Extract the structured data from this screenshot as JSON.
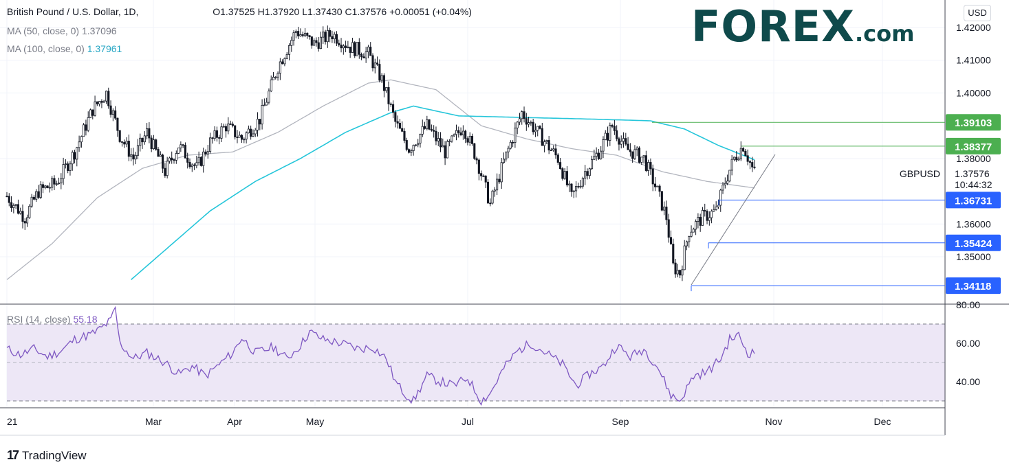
{
  "header": {
    "symbol_line": "British Pound / U.S. Dollar, 1D,",
    "ohlc": "O1.37525  H1.37920  L1.37430  C1.37576  +0.00051 (+0.04%)",
    "ma50_label": "MA (50, close, 0)",
    "ma50_value": "1.37096",
    "ma100_label": "MA (100, close, 0)",
    "ma100_value": "1.37961"
  },
  "logo": {
    "main": "FOREX",
    "suffix": ".com"
  },
  "footer": {
    "brand": "TradingView",
    "mark": "17"
  },
  "currency_button": "USD",
  "colors": {
    "bull": "#131722",
    "bear": "#131722",
    "ma50": "#b2b5be",
    "ma100": "#26c6da",
    "resistance": "#4caf50",
    "support": "#2962ff",
    "rsi": "#7e57c2",
    "rsi_band": "#ede7f6"
  },
  "chart_data": [
    {
      "type": "candlestick",
      "title": "British Pound / U.S. Dollar, 1D",
      "symbol": "GBPUSD",
      "last_price": "1.37576",
      "countdown": "10:44:32",
      "y_ticks": [
        "1.42000",
        "1.41000",
        "1.40000",
        "1.38000",
        "1.36000",
        "1.35000"
      ],
      "ylim": [
        1.3375,
        1.4235
      ],
      "x_ticks": [
        "21",
        "Mar",
        "Apr",
        "May",
        "Jul",
        "Sep",
        "Nov",
        "Dec"
      ],
      "levels": [
        {
          "value": "1.39103",
          "color": "green"
        },
        {
          "value": "1.38377",
          "color": "green"
        },
        {
          "value": "1.36731",
          "color": "blue"
        },
        {
          "value": "1.35424",
          "color": "blue"
        },
        {
          "value": "1.34118",
          "color": "blue"
        }
      ],
      "close_series_anchors": [
        [
          0,
          1.3685
        ],
        [
          8,
          1.362
        ],
        [
          14,
          1.37
        ],
        [
          22,
          1.3725
        ],
        [
          30,
          1.382
        ],
        [
          38,
          1.395
        ],
        [
          44,
          1.4
        ],
        [
          50,
          1.387
        ],
        [
          56,
          1.38
        ],
        [
          62,
          1.388
        ],
        [
          70,
          1.376
        ],
        [
          76,
          1.384
        ],
        [
          84,
          1.377
        ],
        [
          90,
          1.385
        ],
        [
          97,
          1.39
        ],
        [
          104,
          1.386
        ],
        [
          112,
          1.392
        ],
        [
          120,
          1.408
        ],
        [
          128,
          1.419
        ],
        [
          136,
          1.415
        ],
        [
          144,
          1.418
        ],
        [
          152,
          1.414
        ],
        [
          160,
          1.412
        ],
        [
          166,
          1.404
        ],
        [
          172,
          1.391
        ],
        [
          178,
          1.383
        ],
        [
          186,
          1.39
        ],
        [
          194,
          1.382
        ],
        [
          202,
          1.39
        ],
        [
          208,
          1.38
        ],
        [
          214,
          1.366
        ],
        [
          220,
          1.379
        ],
        [
          228,
          1.394
        ],
        [
          236,
          1.387
        ],
        [
          244,
          1.38
        ],
        [
          250,
          1.368
        ],
        [
          256,
          1.376
        ],
        [
          262,
          1.382
        ],
        [
          268,
          1.39
        ],
        [
          274,
          1.383
        ],
        [
          282,
          1.38
        ],
        [
          288,
          1.37
        ],
        [
          292,
          1.362
        ],
        [
          295,
          1.347
        ],
        [
          298,
          1.345
        ],
        [
          302,
          1.358
        ],
        [
          308,
          1.362
        ],
        [
          314,
          1.364
        ],
        [
          318,
          1.373
        ],
        [
          322,
          1.38
        ],
        [
          326,
          1.384
        ],
        [
          330,
          1.377
        ],
        [
          331,
          1.3758
        ]
      ],
      "ma50_anchors": [
        [
          0,
          1.343
        ],
        [
          20,
          1.354
        ],
        [
          40,
          1.368
        ],
        [
          60,
          1.377
        ],
        [
          80,
          1.381
        ],
        [
          100,
          1.382
        ],
        [
          120,
          1.388
        ],
        [
          140,
          1.396
        ],
        [
          160,
          1.403
        ],
        [
          170,
          1.404
        ],
        [
          190,
          1.401
        ],
        [
          210,
          1.39
        ],
        [
          230,
          1.386
        ],
        [
          250,
          1.383
        ],
        [
          270,
          1.381
        ],
        [
          290,
          1.376
        ],
        [
          310,
          1.373
        ],
        [
          331,
          1.371
        ]
      ],
      "ma100_anchors": [
        [
          55,
          1.343
        ],
        [
          70,
          1.352
        ],
        [
          90,
          1.364
        ],
        [
          110,
          1.373
        ],
        [
          130,
          1.38
        ],
        [
          150,
          1.388
        ],
        [
          170,
          1.394
        ],
        [
          180,
          1.396
        ],
        [
          200,
          1.393
        ],
        [
          230,
          1.3925
        ],
        [
          260,
          1.392
        ],
        [
          285,
          1.3915
        ],
        [
          300,
          1.389
        ],
        [
          315,
          1.384
        ],
        [
          331,
          1.3796
        ]
      ],
      "series": [
        {
          "name": "MA (50, close, 0)",
          "last": "1.37096"
        },
        {
          "name": "MA (100, close, 0)",
          "last": "1.37961"
        }
      ]
    },
    {
      "type": "line",
      "title": "RSI (14, close)",
      "last_value": "55.18",
      "y_ticks": [
        "80.00",
        "60.00",
        "40.00"
      ],
      "ylim": [
        22,
        80
      ],
      "band": [
        30,
        70
      ],
      "anchors": [
        [
          0,
          57
        ],
        [
          6,
          54
        ],
        [
          12,
          57
        ],
        [
          18,
          53
        ],
        [
          24,
          56
        ],
        [
          30,
          62
        ],
        [
          38,
          65
        ],
        [
          42,
          68
        ],
        [
          46,
          72
        ],
        [
          48,
          78
        ],
        [
          50,
          60
        ],
        [
          56,
          52
        ],
        [
          62,
          55
        ],
        [
          70,
          50
        ],
        [
          76,
          44
        ],
        [
          82,
          48
        ],
        [
          88,
          43
        ],
        [
          94,
          49
        ],
        [
          100,
          55
        ],
        [
          104,
          63
        ],
        [
          110,
          55
        ],
        [
          118,
          58
        ],
        [
          124,
          52
        ],
        [
          130,
          59
        ],
        [
          134,
          66
        ],
        [
          140,
          62
        ],
        [
          148,
          60
        ],
        [
          156,
          57
        ],
        [
          162,
          58
        ],
        [
          168,
          52
        ],
        [
          172,
          40
        ],
        [
          176,
          34
        ],
        [
          180,
          30
        ],
        [
          186,
          43
        ],
        [
          192,
          40
        ],
        [
          198,
          38
        ],
        [
          204,
          42
        ],
        [
          210,
          30
        ],
        [
          214,
          34
        ],
        [
          220,
          47
        ],
        [
          226,
          56
        ],
        [
          232,
          60
        ],
        [
          240,
          54
        ],
        [
          246,
          49
        ],
        [
          252,
          38
        ],
        [
          258,
          44
        ],
        [
          264,
          48
        ],
        [
          270,
          59
        ],
        [
          276,
          53
        ],
        [
          282,
          57
        ],
        [
          288,
          48
        ],
        [
          294,
          33
        ],
        [
          298,
          30
        ],
        [
          304,
          43
        ],
        [
          310,
          45
        ],
        [
          316,
          52
        ],
        [
          320,
          62
        ],
        [
          324,
          64
        ],
        [
          328,
          55
        ],
        [
          331,
          55
        ]
      ]
    }
  ]
}
